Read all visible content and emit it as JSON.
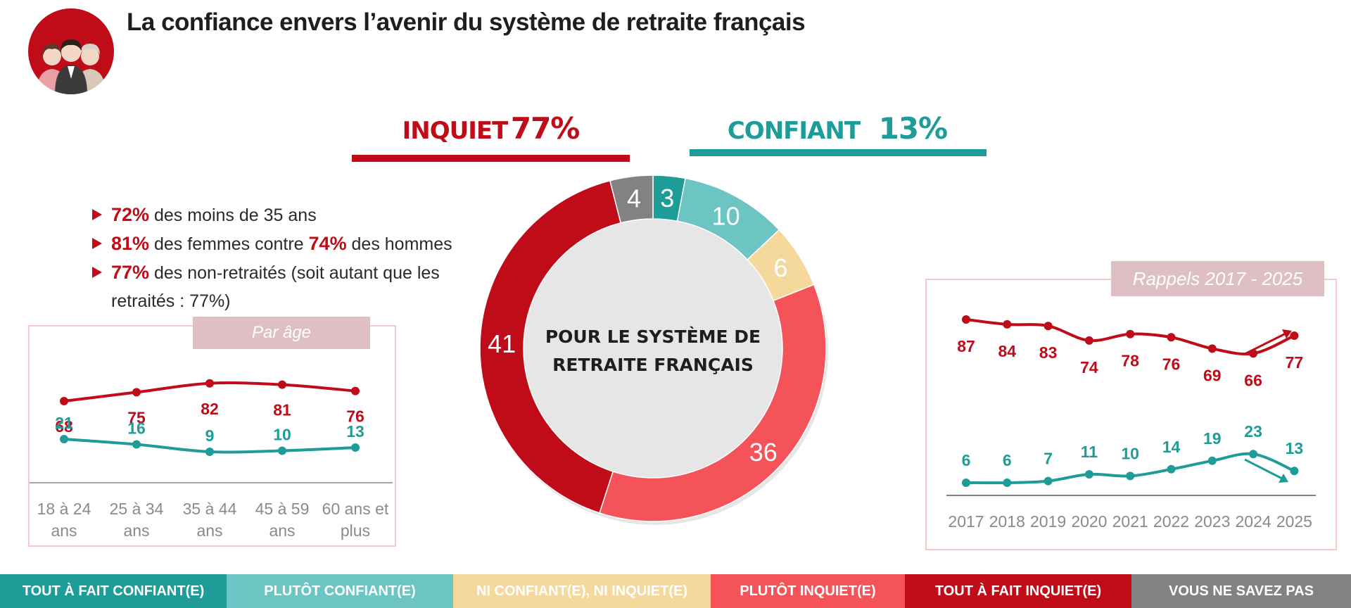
{
  "title": "La confiance envers l’avenir du système de retraite français",
  "colors": {
    "tout_confiant": "#1e9c98",
    "plutot_confiant": "#6cc4c3",
    "ni_ni": "#f5d89c",
    "plutot_inquiet": "#f4535a",
    "tout_inquiet": "#c00b18",
    "ne_sait_pas": "#828282",
    "tag_bg": "#ddbfc4",
    "box_border": "#f7c9c9"
  },
  "headline": {
    "inquiet_label": "INQUIET",
    "inquiet_pct": "77%",
    "confiant_label": "CONFIANT",
    "confiant_pct": "13%"
  },
  "bullets": {
    "b1_pct": "72%",
    "b1_text": " des moins de 35 ans",
    "b2_pct": "81%",
    "b2_text": " des femmes contre ",
    "b2_pct2": "74%",
    "b2_text2": " des hommes",
    "b3_pct": "77%",
    "b3_text": " des non-retraités (soit autant que les",
    "b3_cont": "retraités : 77%)"
  },
  "age_tag": "Par âge",
  "recall_tag": "Rappels 2017 - 2025",
  "legend": [
    {
      "label": "TOUT À FAIT CONFIANT(E)",
      "color": "#1e9c98"
    },
    {
      "label": "PLUTÔT CONFIANT(E)",
      "color": "#6cc4c3"
    },
    {
      "label": "NI CONFIANT(E), NI INQUIET(E)",
      "color": "#f5d89c"
    },
    {
      "label": "PLUTÔT INQUIET(E)",
      "color": "#f4535a"
    },
    {
      "label": "TOUT À FAIT INQUIET(E)",
      "color": "#c00b18"
    },
    {
      "label": "VOUS NE SAVEZ PAS",
      "color": "#828282"
    }
  ],
  "chart_data": [
    {
      "type": "pie",
      "title": "Pour le système de retraite français",
      "categories": [
        "Tout à fait confiant(e)",
        "Plutôt confiant(e)",
        "Ni confiant(e), ni inquiet(e)",
        "Plutôt inquiet(e)",
        "Tout à fait inquiet(e)",
        "Vous ne savez pas"
      ],
      "values": [
        3,
        10,
        6,
        36,
        41,
        4
      ],
      "donut": true
    },
    {
      "type": "line",
      "title": "Par âge",
      "categories": [
        "18 à 24 ans",
        "25 à 34 ans",
        "35 à 44 ans",
        "45 à 59 ans",
        "60 ans et plus"
      ],
      "series": [
        {
          "name": "Inquiet",
          "values": [
            68,
            75,
            82,
            81,
            76
          ]
        },
        {
          "name": "Confiant",
          "values": [
            21,
            16,
            9,
            10,
            13
          ]
        }
      ]
    },
    {
      "type": "line",
      "title": "Rappels 2017 - 2025",
      "categories": [
        "2017",
        "2018",
        "2019",
        "2020",
        "2021",
        "2022",
        "2023",
        "2024",
        "2025"
      ],
      "series": [
        {
          "name": "Inquiet",
          "values": [
            87,
            84,
            83,
            74,
            78,
            76,
            69,
            66,
            77
          ]
        },
        {
          "name": "Confiant",
          "values": [
            6,
            6,
            7,
            11,
            10,
            14,
            19,
            23,
            13
          ]
        }
      ]
    }
  ]
}
